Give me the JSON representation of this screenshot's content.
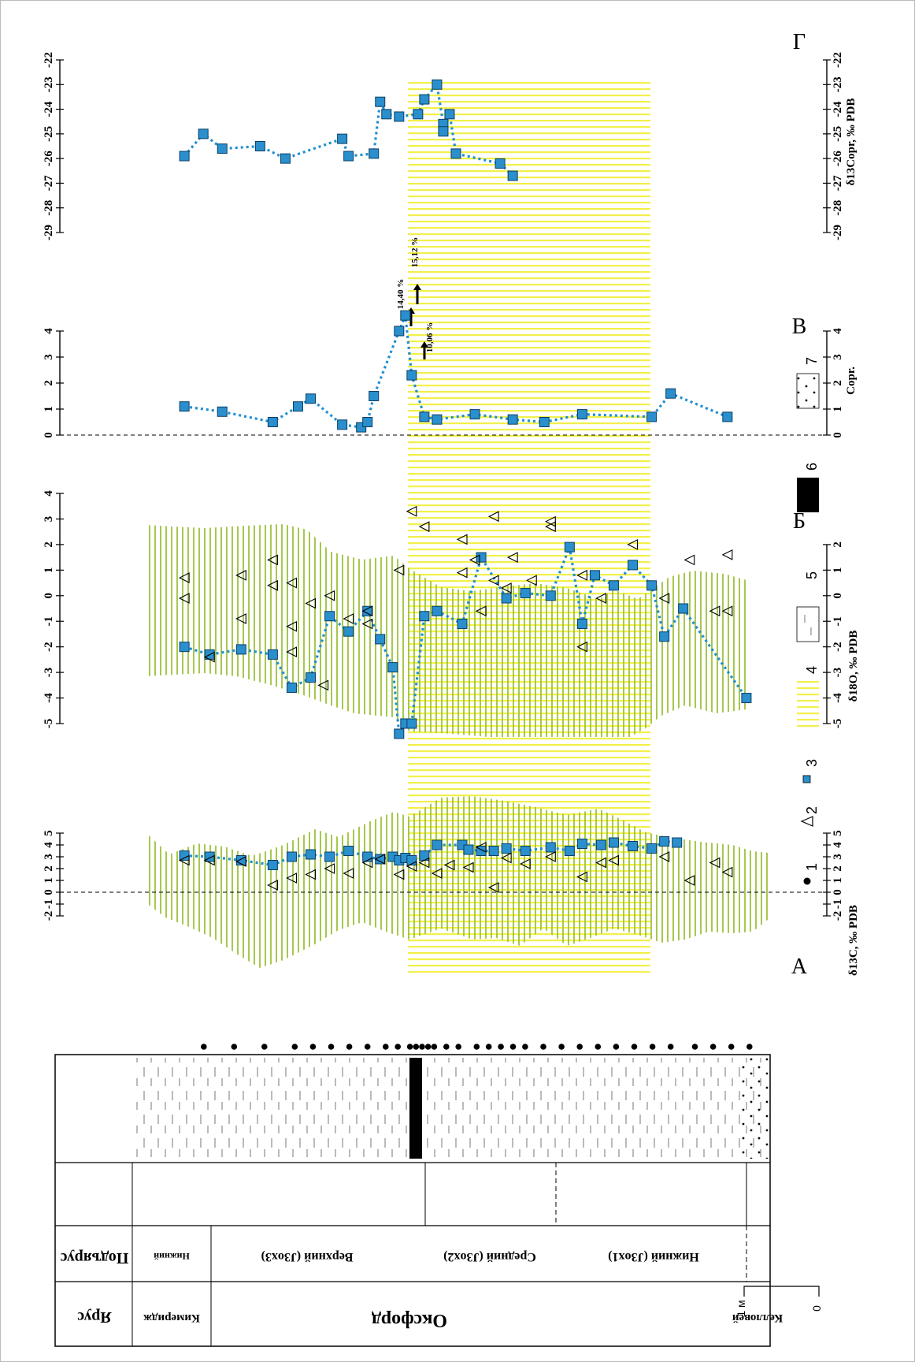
{
  "panel_letters": {
    "A": "А",
    "B": "Б",
    "V": "В",
    "G": "Г"
  },
  "panel_labels": {
    "A": "δ13C, ‰ PDB",
    "B": "δ18O, ‰ PDB",
    "V": "Copr.",
    "G": "δ13Copr, ‰ PDB"
  },
  "arrow_labels": [
    "14,40 %",
    "15,12 %",
    "10,06 %"
  ],
  "legend": [
    {
      "num": "1",
      "symbol": "dot"
    },
    {
      "num": "2",
      "symbol": "triangle"
    },
    {
      "num": "3",
      "symbol": "square"
    },
    {
      "num": "4",
      "symbol": "yellow-hatch"
    },
    {
      "num": "5",
      "symbol": "clay"
    },
    {
      "num": "6",
      "symbol": "black"
    },
    {
      "num": "7",
      "symbol": "sand"
    }
  ],
  "scale_bar": {
    "top": "1 м",
    "bottom": "0"
  },
  "strat_table": {
    "headers": {
      "stage": "Ярус",
      "substage": "Подъярус"
    },
    "stages": [
      "Кимеридж",
      "Оксфорд",
      "Келловей"
    ],
    "substages": [
      "Нижний",
      "Верхний (J3ox3)",
      "Средний (J3ox2)",
      "Нижний (J3ox1)"
    ]
  },
  "colors": {
    "series": "#1e8fd0",
    "marker": "#2a8fcc",
    "hatch_green": "#9cc23a",
    "hatch_yellow": "#f2f04a"
  },
  "chart_data": [
    {
      "id": "A",
      "type": "scatter",
      "ylabel": "δ13C, ‰ PDB",
      "xlim": [
        -2,
        5
      ],
      "ticks": [
        "-2",
        "-1",
        "0",
        "1",
        "2",
        "3",
        "4",
        "5"
      ],
      "series": [
        {
          "name": "3 (line)",
          "points": [
            [
              3.1,
              0.06
            ],
            [
              3.0,
              0.1
            ],
            [
              2.7,
              0.15
            ],
            [
              2.3,
              0.2
            ],
            [
              3.0,
              0.23
            ],
            [
              3.2,
              0.26
            ],
            [
              3.0,
              0.29
            ],
            [
              3.5,
              0.32
            ],
            [
              3.0,
              0.35
            ],
            [
              2.8,
              0.37
            ],
            [
              3.0,
              0.39
            ],
            [
              2.7,
              0.4
            ],
            [
              2.9,
              0.41
            ],
            [
              2.7,
              0.42
            ],
            [
              3.1,
              0.44
            ],
            [
              4.0,
              0.46
            ],
            [
              4.0,
              0.5
            ],
            [
              3.6,
              0.51
            ],
            [
              3.5,
              0.53
            ],
            [
              3.5,
              0.55
            ],
            [
              3.7,
              0.57
            ],
            [
              3.5,
              0.6
            ],
            [
              3.8,
              0.64
            ],
            [
              3.5,
              0.67
            ],
            [
              4.1,
              0.69
            ],
            [
              4.0,
              0.72
            ],
            [
              4.2,
              0.74
            ],
            [
              3.9,
              0.77
            ],
            [
              3.7,
              0.8
            ],
            [
              4.3,
              0.82
            ],
            [
              4.2,
              0.84
            ]
          ]
        },
        {
          "name": "2",
          "points": [
            [
              2.7,
              0.06
            ],
            [
              2.7,
              0.1
            ],
            [
              2.6,
              0.15
            ],
            [
              0.6,
              0.2
            ],
            [
              1.2,
              0.23
            ],
            [
              1.5,
              0.26
            ],
            [
              2.0,
              0.29
            ],
            [
              1.6,
              0.32
            ],
            [
              2.5,
              0.35
            ],
            [
              2.8,
              0.37
            ],
            [
              1.5,
              0.4
            ],
            [
              2.2,
              0.42
            ],
            [
              2.5,
              0.44
            ],
            [
              1.6,
              0.46
            ],
            [
              2.3,
              0.48
            ],
            [
              2.1,
              0.51
            ],
            [
              3.8,
              0.53
            ],
            [
              0.4,
              0.55
            ],
            [
              2.9,
              0.57
            ],
            [
              2.4,
              0.6
            ],
            [
              3.0,
              0.64
            ],
            [
              1.3,
              0.69
            ],
            [
              2.5,
              0.72
            ],
            [
              2.7,
              0.74
            ],
            [
              3.0,
              0.82
            ],
            [
              1.0,
              0.86
            ],
            [
              2.5,
              0.9
            ],
            [
              1.7,
              0.92
            ]
          ]
        }
      ]
    },
    {
      "id": "B",
      "type": "scatter",
      "ylabel": "δ18O, ‰ PDB",
      "xlim": [
        -5,
        4
      ],
      "ticks": [
        "-5",
        "-4",
        "-3",
        "-2",
        "-1",
        "0",
        "1",
        "2",
        "3",
        "4"
      ],
      "bottom_ticks": [
        "-5",
        "-4",
        "-3",
        "-2",
        "-1",
        "0",
        "1",
        "2"
      ],
      "series": [
        {
          "name": "3 (line)",
          "points": [
            [
              -2.0,
              0.06
            ],
            [
              -2.3,
              0.1
            ],
            [
              -2.1,
              0.15
            ],
            [
              -2.3,
              0.2
            ],
            [
              -3.6,
              0.23
            ],
            [
              -3.2,
              0.26
            ],
            [
              -0.8,
              0.29
            ],
            [
              -1.4,
              0.32
            ],
            [
              -0.6,
              0.35
            ],
            [
              -1.7,
              0.37
            ],
            [
              -2.8,
              0.39
            ],
            [
              -5.4,
              0.4
            ],
            [
              -5.0,
              0.41
            ],
            [
              -5.0,
              0.42
            ],
            [
              -0.8,
              0.44
            ],
            [
              -0.6,
              0.46
            ],
            [
              -1.1,
              0.5
            ],
            [
              1.5,
              0.53
            ],
            [
              -0.1,
              0.57
            ],
            [
              0.1,
              0.6
            ],
            [
              0.0,
              0.64
            ],
            [
              1.9,
              0.67
            ],
            [
              -1.1,
              0.69
            ],
            [
              0.8,
              0.71
            ],
            [
              0.4,
              0.74
            ],
            [
              1.2,
              0.77
            ],
            [
              0.4,
              0.8
            ],
            [
              -1.6,
              0.82
            ],
            [
              -0.5,
              0.85
            ],
            [
              -4.0,
              0.95
            ]
          ]
        },
        {
          "name": "2",
          "points": [
            [
              0.7,
              0.06
            ],
            [
              -0.1,
              0.06
            ],
            [
              -2.4,
              0.1
            ],
            [
              0.8,
              0.15
            ],
            [
              -0.9,
              0.15
            ],
            [
              1.4,
              0.2
            ],
            [
              0.4,
              0.2
            ],
            [
              -2.2,
              0.23
            ],
            [
              0.5,
              0.23
            ],
            [
              -1.2,
              0.23
            ],
            [
              -0.3,
              0.26
            ],
            [
              -3.5,
              0.28
            ],
            [
              0.0,
              0.29
            ],
            [
              -0.9,
              0.32
            ],
            [
              -0.6,
              0.35
            ],
            [
              -1.1,
              0.35
            ],
            [
              1.0,
              0.4
            ],
            [
              3.3,
              0.42
            ],
            [
              2.7,
              0.44
            ],
            [
              2.2,
              0.5
            ],
            [
              0.9,
              0.5
            ],
            [
              1.4,
              0.52
            ],
            [
              -0.6,
              0.53
            ],
            [
              3.1,
              0.55
            ],
            [
              0.6,
              0.55
            ],
            [
              0.3,
              0.57
            ],
            [
              1.5,
              0.58
            ],
            [
              0.6,
              0.61
            ],
            [
              2.7,
              0.64
            ],
            [
              2.9,
              0.64
            ],
            [
              -2.0,
              0.69
            ],
            [
              0.8,
              0.69
            ],
            [
              -0.1,
              0.72
            ],
            [
              2.0,
              0.77
            ],
            [
              -0.1,
              0.82
            ],
            [
              1.4,
              0.86
            ],
            [
              -0.6,
              0.9
            ],
            [
              1.6,
              0.92
            ],
            [
              -0.6,
              0.92
            ]
          ]
        }
      ]
    },
    {
      "id": "V",
      "type": "line",
      "ylabel": "Copr.",
      "xlim": [
        0,
        4
      ],
      "ticks": [
        "0",
        "1",
        "2",
        "3",
        "4"
      ],
      "series": [
        {
          "name": "3",
          "points": [
            [
              1.1,
              0.06
            ],
            [
              0.9,
              0.12
            ],
            [
              0.5,
              0.2
            ],
            [
              1.1,
              0.24
            ],
            [
              1.4,
              0.26
            ],
            [
              0.4,
              0.31
            ],
            [
              0.3,
              0.34
            ],
            [
              0.5,
              0.35
            ],
            [
              1.5,
              0.36
            ],
            [
              4.0,
              0.4
            ],
            [
              4.6,
              0.41
            ],
            [
              2.3,
              0.42
            ],
            [
              0.7,
              0.44
            ],
            [
              0.6,
              0.46
            ],
            [
              0.8,
              0.52
            ],
            [
              0.6,
              0.58
            ],
            [
              0.5,
              0.63
            ],
            [
              0.8,
              0.69
            ],
            [
              0.7,
              0.8
            ],
            [
              1.6,
              0.83
            ],
            [
              0.7,
              0.92
            ]
          ]
        }
      ]
    },
    {
      "id": "G",
      "type": "line",
      "ylabel": "δ13Copr, ‰ PDB",
      "xlim": [
        -29,
        -22
      ],
      "ticks": [
        "-29",
        "-28",
        "-27",
        "-26",
        "-25",
        "-24",
        "-23",
        "-22"
      ],
      "series": [
        {
          "name": "3",
          "points": [
            [
              -25.9,
              0.06
            ],
            [
              -25.0,
              0.09
            ],
            [
              -25.6,
              0.12
            ],
            [
              -25.5,
              0.18
            ],
            [
              -26.0,
              0.22
            ],
            [
              -25.2,
              0.31
            ],
            [
              -25.9,
              0.32
            ],
            [
              -25.8,
              0.36
            ],
            [
              -23.7,
              0.37
            ],
            [
              -24.2,
              0.38
            ],
            [
              -24.3,
              0.4
            ],
            [
              -24.2,
              0.43
            ],
            [
              -23.6,
              0.44
            ],
            [
              -23.0,
              0.46
            ],
            [
              -24.6,
              0.47
            ],
            [
              -24.9,
              0.47
            ],
            [
              -24.2,
              0.48
            ],
            [
              -25.8,
              0.49
            ],
            [
              -26.2,
              0.56
            ],
            [
              -26.7,
              0.58
            ]
          ]
        }
      ]
    }
  ]
}
